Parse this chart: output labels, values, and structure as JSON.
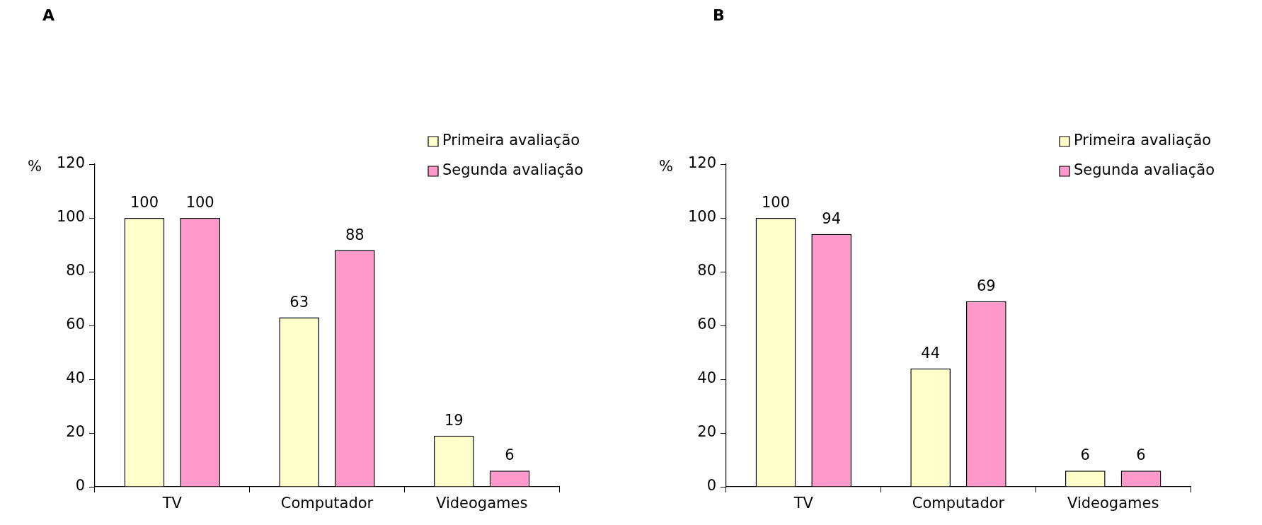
{
  "chart_data": [
    {
      "type": "bar",
      "title": "A",
      "ylabel": "%",
      "categories": [
        "TV",
        "Computador",
        "Videogames"
      ],
      "series": [
        {
          "name": "Primeira avaliação",
          "color": "#ffffcc",
          "values": [
            100,
            63,
            19
          ]
        },
        {
          "name": "Segunda avaliação",
          "color": "#ff99cc",
          "values": [
            100,
            88,
            6
          ]
        }
      ],
      "ylim": [
        0,
        120
      ],
      "yticks": [
        0,
        20,
        40,
        60,
        80,
        100,
        120
      ],
      "legend": "top right",
      "data_labels": true
    },
    {
      "type": "bar",
      "title": "B",
      "ylabel": "%",
      "categories": [
        "TV",
        "Computador",
        "Videogames"
      ],
      "series": [
        {
          "name": "Primeira avaliação",
          "color": "#ffffcc",
          "values": [
            100,
            44,
            6
          ]
        },
        {
          "name": "Segunda avaliação",
          "color": "#ff99cc",
          "values": [
            94,
            69,
            6
          ]
        }
      ],
      "ylim": [
        0,
        120
      ],
      "yticks": [
        0,
        20,
        40,
        60,
        80,
        100,
        120
      ],
      "legend": "top right",
      "data_labels": true
    }
  ]
}
